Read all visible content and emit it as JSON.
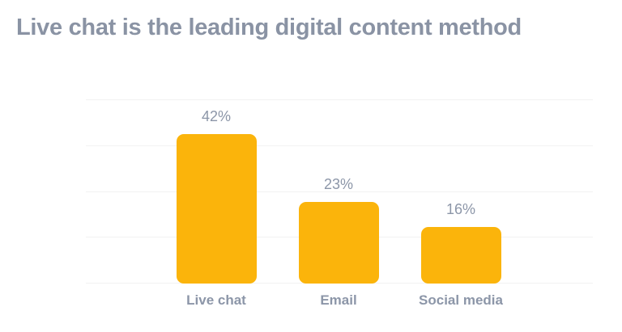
{
  "title": {
    "text": "Live chat is the leading digital content method",
    "color": "#8a93a4"
  },
  "chart_data": {
    "type": "bar",
    "title": "Live chat is the leading digital content method",
    "categories": [
      "Live chat",
      "Email",
      "Social media"
    ],
    "values": [
      42,
      23,
      16
    ],
    "value_labels": [
      "42%",
      "23%",
      "16%"
    ],
    "xlabel": "",
    "ylabel": "",
    "ylim": [
      0,
      52
    ],
    "grid": true,
    "gridline_count": 5,
    "legend": "none",
    "colors": {
      "bar": "#fbb40b",
      "label": "#8c96a8",
      "gridline": "#f2f2f2",
      "background": "#ffffff"
    }
  }
}
